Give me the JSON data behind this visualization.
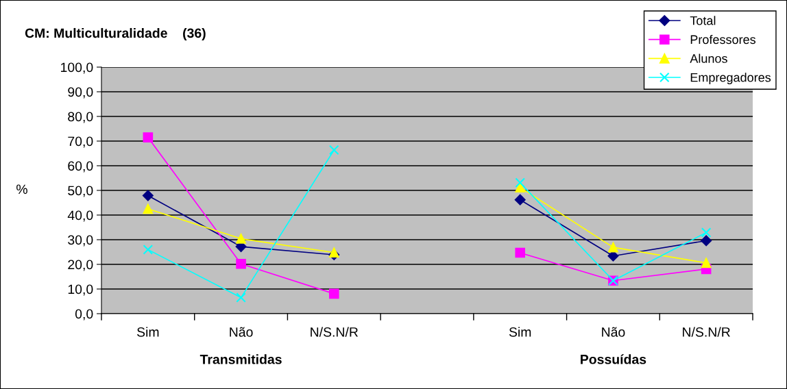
{
  "chart_data": {
    "type": "line",
    "title": "CM: Multiculturalidade    (36)",
    "ylabel": "%",
    "categories": [
      "Sim",
      "Não",
      "N/S.N/R",
      null,
      "Sim",
      "Não",
      "N/S.N/R"
    ],
    "annotations": [
      "Transmitidas",
      "Possuídas"
    ],
    "series": [
      {
        "name": "Total",
        "color": "#000080",
        "marker": "diamond",
        "values": [
          47.9,
          27.2,
          23.9,
          null,
          46.2,
          23.4,
          29.6
        ]
      },
      {
        "name": "Professores",
        "color": "#ff00ff",
        "marker": "square",
        "values": [
          71.5,
          20.2,
          8.1,
          null,
          24.7,
          13.4,
          18.1
        ]
      },
      {
        "name": "Alunos",
        "color": "#ffff00",
        "marker": "triangle",
        "values": [
          42.5,
          30.4,
          24.8,
          null,
          51.2,
          26.9,
          20.6
        ]
      },
      {
        "name": "Empregadores",
        "color": "#00ffff",
        "marker": "cross",
        "values": [
          26.0,
          6.5,
          66.4,
          null,
          53.1,
          13.4,
          32.9
        ]
      }
    ],
    "ylim": [
      0,
      100
    ],
    "yticks": [
      {
        "value": 0,
        "label": "0,0"
      },
      {
        "value": 10,
        "label": "10,0"
      },
      {
        "value": 20,
        "label": "20,0"
      },
      {
        "value": 30,
        "label": "30,0"
      },
      {
        "value": 40,
        "label": "40,0"
      },
      {
        "value": 50,
        "label": "50,0"
      },
      {
        "value": 60,
        "label": "60,0"
      },
      {
        "value": 70,
        "label": "70,0"
      },
      {
        "value": 80,
        "label": "80,0"
      },
      {
        "value": 90,
        "label": "90,0"
      },
      {
        "value": 100,
        "label": "100,0"
      }
    ],
    "grid": "y",
    "legend": "top right"
  }
}
